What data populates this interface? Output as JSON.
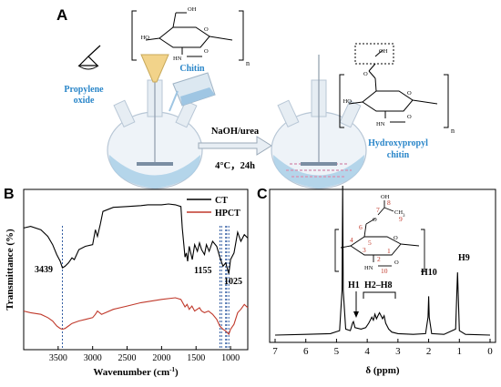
{
  "panel_a": {
    "letter": "A",
    "reagent_1": "Propylene",
    "reagent_2": "oxide",
    "reactant": "Chitin",
    "conditions_top": "NaOH/urea",
    "conditions_bottom": "4°C，24h",
    "product_1": "Hydroxypropyl",
    "product_2": "chitin",
    "subscript_n": "n",
    "atoms": {
      "oh": "OH",
      "ho": "HO",
      "o": "O",
      "nh": "HN",
      "c_o": "O"
    }
  },
  "panel_b": {
    "letter": "B",
    "legend": [
      {
        "name": "CT",
        "color": "#000000"
      },
      {
        "name": "HPCT",
        "color": "#c0392b"
      }
    ],
    "annotations": [
      "3439",
      "1155",
      "1025"
    ],
    "colors": {
      "ct": "#000000",
      "hpct": "#c0392b",
      "guide": "#1f4e9a"
    }
  },
  "panel_c": {
    "letter": "C",
    "peak_labels": [
      "H1",
      "H2–H8",
      "H10",
      "H9"
    ],
    "numbers": [
      "1",
      "2",
      "3",
      "4",
      "5",
      "6",
      "7",
      "8",
      "9",
      "10"
    ],
    "number_color": "#c0392b",
    "atoms": {
      "oh": "OH",
      "ch3": "CH",
      "three": "3",
      "o": "O",
      "nh": "HN"
    }
  },
  "chart_data": [
    {
      "type": "line",
      "panel": "B",
      "xlabel": "Wavenumber (cm",
      "xlabel_sup": "-1",
      "xlabel_end": ")",
      "ylabel": "Transmittance (%)",
      "xlim": [
        4000,
        750
      ],
      "x_reversed": true,
      "xticks": [
        4000,
        3500,
        3000,
        2500,
        2000,
        1500,
        1000
      ],
      "xtick_labels": [
        "",
        "3500",
        "3000",
        "2500",
        "2000",
        "1500",
        "1000"
      ],
      "legend_placement": "top-right",
      "series": [
        {
          "name": "CT",
          "x": [
            4000,
            3900,
            3750,
            3650,
            3580,
            3520,
            3470,
            3439,
            3400,
            3350,
            3300,
            3265,
            3200,
            3105,
            3000,
            2960,
            2930,
            2890,
            2850,
            2700,
            2500,
            2300,
            2200,
            2000,
            1900,
            1800,
            1720,
            1700,
            1660,
            1640,
            1622,
            1600,
            1555,
            1520,
            1480,
            1450,
            1420,
            1378,
            1350,
            1310,
            1260,
            1200,
            1155,
            1110,
            1070,
            1025,
            1000,
            950,
            896,
            850,
            800,
            750
          ],
          "y": [
            60,
            62,
            58,
            50,
            40,
            28,
            20,
            12,
            14,
            18,
            24,
            22,
            34,
            38,
            40,
            58,
            50,
            64,
            80,
            85,
            86,
            87,
            88,
            88,
            89,
            88,
            86,
            60,
            25,
            30,
            20,
            38,
            22,
            40,
            32,
            42,
            34,
            28,
            40,
            32,
            44,
            38,
            25,
            14,
            18,
            5,
            22,
            30,
            55,
            44,
            52,
            48
          ]
        },
        {
          "name": "HPCT",
          "x": [
            4000,
            3900,
            3750,
            3650,
            3580,
            3520,
            3470,
            3439,
            3400,
            3350,
            3300,
            3200,
            3100,
            3000,
            2960,
            2930,
            2900,
            2870,
            2700,
            2500,
            2300,
            2000,
            1800,
            1720,
            1660,
            1630,
            1600,
            1560,
            1520,
            1450,
            1420,
            1378,
            1320,
            1260,
            1200,
            1155,
            1110,
            1070,
            1025,
            1000,
            950,
            896,
            850,
            800,
            750
          ],
          "y": [
            -40,
            -42,
            -44,
            -48,
            -52,
            -58,
            -61,
            -62,
            -61,
            -58,
            -55,
            -52,
            -50,
            -48,
            -44,
            -40,
            -42,
            -44,
            -38,
            -34,
            -30,
            -26,
            -24,
            -26,
            -35,
            -32,
            -38,
            -34,
            -40,
            -36,
            -40,
            -42,
            -40,
            -44,
            -50,
            -58,
            -62,
            -64,
            -68,
            -62,
            -56,
            -42,
            -38,
            -32,
            -36
          ]
        }
      ]
    },
    {
      "type": "line",
      "panel": "C",
      "xlabel": "δ (ppm)",
      "xlim": [
        7,
        0
      ],
      "x_reversed": true,
      "xticks": [
        7,
        6,
        5,
        4,
        3,
        2,
        1,
        0
      ],
      "series": [
        {
          "name": "",
          "x": [
            7,
            6,
            5.2,
            4.9,
            4.82,
            4.8,
            4.78,
            4.7,
            4.55,
            4.48,
            4.45,
            4.4,
            4.2,
            4.05,
            3.95,
            3.85,
            3.8,
            3.75,
            3.7,
            3.65,
            3.6,
            3.5,
            3.45,
            3.4,
            3.35,
            3.3,
            3.2,
            3.0,
            2.5,
            2.1,
            2.02,
            2.0,
            1.98,
            1.9,
            1.5,
            1.12,
            1.08,
            1.06,
            1.04,
            1.0,
            0.8,
            0
          ],
          "y": [
            0.0,
            0.005,
            0.01,
            0.03,
            0.3,
            1.0,
            0.3,
            0.04,
            0.03,
            0.08,
            0.09,
            0.05,
            0.04,
            0.05,
            0.08,
            0.12,
            0.1,
            0.14,
            0.11,
            0.13,
            0.15,
            0.11,
            0.13,
            0.08,
            0.06,
            0.04,
            0.02,
            0.01,
            0.005,
            0.01,
            0.12,
            0.26,
            0.12,
            0.01,
            0.005,
            0.04,
            0.3,
            0.42,
            0.3,
            0.03,
            0.005,
            0.0
          ]
        }
      ],
      "peak_positions": {
        "H1": 4.47,
        "H2–H8": [
          3.3,
          4.0
        ],
        "H10": 2.0,
        "H9": 1.06
      }
    }
  ]
}
